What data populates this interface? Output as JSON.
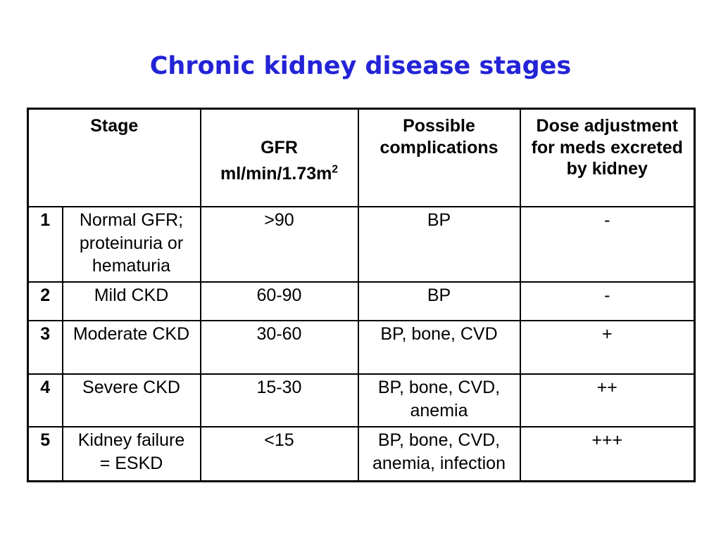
{
  "slide": {
    "title": "Chronic kidney disease stages",
    "title_color": "#2323d7",
    "background_color": "#ffffff",
    "table_border_color": "#000000"
  },
  "table": {
    "headers": {
      "stage": "Stage",
      "gfr_line1": "GFR",
      "gfr_line2_base": "ml/min/1.73m",
      "gfr_line2_sup": "2",
      "complications": "Possible\ncomplications",
      "dose": "Dose adjustment\nfor meds excreted\nby kidney"
    },
    "rows": [
      {
        "num": "1",
        "desc": "Normal GFR;\nproteinuria or\nhematuria",
        "gfr": ">90",
        "complications": "BP",
        "dose": "-"
      },
      {
        "num": "2",
        "desc": "Mild CKD",
        "gfr": "60-90",
        "complications": "BP",
        "dose": "-"
      },
      {
        "num": "3",
        "desc": "Moderate CKD",
        "gfr": "30-60",
        "complications": "BP, bone, CVD",
        "dose": "+"
      },
      {
        "num": "4",
        "desc": "Severe CKD",
        "gfr": "15-30",
        "complications": "BP, bone, CVD,\nanemia",
        "dose": "++"
      },
      {
        "num": "5",
        "desc": "Kidney failure\n= ESKD",
        "gfr": "<15",
        "complications": "BP, bone, CVD,\nanemia, infection",
        "dose": "+++"
      }
    ]
  }
}
